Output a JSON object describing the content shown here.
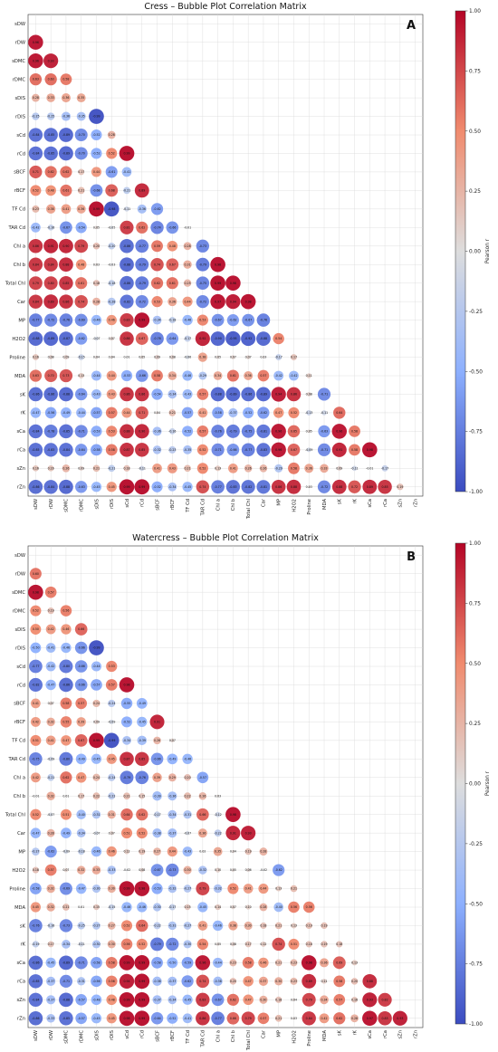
{
  "colorbar": {
    "label": "Pearson r",
    "ticks": [
      "1.00",
      "0.75",
      "0.50",
      "0.25",
      "0.00",
      "-0.25",
      "-0.50",
      "-0.75",
      "-1.00"
    ],
    "colors": {
      "low": "#3b4cc0",
      "mid": "#dddddd",
      "high": "#b40426"
    }
  },
  "chart_data": [
    {
      "type": "heatmap",
      "title": "Cress – Bubble Plot Correlation Matrix",
      "panel": "A",
      "variables": [
        "sDW",
        "rDW",
        "sDMC",
        "rDMC",
        "sDIS",
        "rDIS",
        "sCd",
        "rCd",
        "sBCF",
        "rBCF",
        "TF Cd",
        "TAR Cd",
        "Chl a",
        "Chl b",
        "Total Chl",
        "Car",
        "MP",
        "H2O2",
        "Proline",
        "MDA",
        "sK",
        "rK",
        "sCa",
        "rCa",
        "sZn",
        "rZn"
      ],
      "rows": [
        [
          0.96
        ],
        [
          0.96,
          0.93
        ],
        [
          0.63,
          0.63,
          0.58
        ],
        [
          0.28,
          0.33,
          0.36,
          0.35
        ],
        [
          -0.25,
          -0.25,
          -0.36,
          -0.35,
          -0.99
        ],
        [
          -0.84,
          -0.85,
          -0.89,
          -0.7,
          -0.52,
          0.28
        ],
        [
          -0.84,
          -0.85,
          -0.89,
          -0.7,
          -0.52,
          0.52,
          0.99
        ],
        [
          0.71,
          0.62,
          0.62,
          0.17,
          0.44,
          -0.61,
          -0.41
        ],
        [
          0.52,
          0.48,
          0.61,
          0.21,
          -0.68,
          0.68,
          -0.21,
          0.89
        ],
        [
          0.23,
          0.38,
          0.41,
          0.36,
          0.99,
          -0.98,
          -0.11,
          -0.36,
          -0.62
        ],
        [
          -0.42,
          -0.16,
          -0.67,
          -0.54,
          0.05,
          -0.05,
          0.81,
          0.62,
          -0.74,
          -0.66,
          -0.01
        ],
        [
          0.86,
          0.91,
          0.9,
          0.79,
          0.2,
          -0.2,
          -0.86,
          -0.77,
          0.59,
          0.48,
          0.28,
          -0.73
        ],
        [
          0.84,
          0.84,
          0.88,
          0.48,
          0.03,
          -0.03,
          -0.88,
          -0.79,
          0.74,
          0.67,
          0.31,
          -0.79,
          0.98
        ],
        [
          0.79,
          0.8,
          0.85,
          0.61,
          0.18,
          -0.18,
          -0.86,
          -0.79,
          0.62,
          0.61,
          0.25,
          -0.75,
          0.99,
          0.98
        ],
        [
          0.84,
          0.89,
          0.86,
          0.74,
          0.28,
          -0.28,
          -0.82,
          -0.72,
          0.53,
          0.36,
          0.44,
          -0.72,
          0.97,
          0.94,
          0.98
        ],
        [
          -0.77,
          -0.72,
          -0.76,
          -0.69,
          -0.46,
          0.46,
          0.83,
          0.99,
          -0.34,
          -0.18,
          -0.46,
          0.53,
          -0.67,
          -0.62,
          -0.67,
          -0.76
        ],
        [
          -0.88,
          -0.89,
          -0.87,
          -0.62,
          -0.07,
          0.07,
          0.86,
          0.67,
          -0.76,
          -0.64,
          -0.17,
          0.92,
          -0.9,
          -0.95,
          -0.92,
          -0.88,
          0.54
        ],
        [
          0.16,
          0.08,
          0.09,
          -0.15,
          0.04,
          0.04,
          0.01,
          0.05,
          0.09,
          0.08,
          -0.06,
          0.38,
          0.05,
          0.07,
          0.07,
          0.03,
          -0.17,
          0.17
        ],
        [
          0.63,
          0.7,
          0.73,
          0.13,
          -0.44,
          0.44,
          -0.53,
          -0.66,
          0.58,
          0.34,
          -0.46,
          -0.29,
          0.34,
          0.61,
          0.36,
          0.57,
          -0.42,
          -0.42,
          0.11
        ],
        [
          -0.86,
          -0.86,
          -0.88,
          -0.64,
          -0.43,
          0.43,
          0.86,
          0.86,
          -0.54,
          -0.34,
          -0.43,
          0.57,
          -0.88,
          -0.89,
          -0.86,
          -0.89,
          0.94,
          0.86,
          0.08,
          -0.71
        ],
        [
          -0.47,
          -0.56,
          -0.49,
          -0.44,
          -0.57,
          0.57,
          0.44,
          0.71,
          0.04,
          0.21,
          -0.57,
          0.41,
          -0.58,
          -0.37,
          -0.52,
          -0.62,
          0.47,
          0.52,
          -0.13,
          -0.11,
          0.64
        ],
        [
          -0.84,
          -0.78,
          -0.85,
          -0.71,
          -0.53,
          0.53,
          0.88,
          0.9,
          -0.36,
          -0.16,
          -0.52,
          0.57,
          -0.76,
          -0.79,
          -0.75,
          -0.81,
          0.96,
          0.65,
          0.05,
          -0.63,
          0.96,
          0.58
        ],
        [
          -0.85,
          -0.83,
          -0.84,
          -0.64,
          -0.58,
          0.58,
          0.87,
          0.85,
          -0.32,
          -0.23,
          -0.35,
          0.52,
          -0.71,
          -0.66,
          -0.77,
          -0.83,
          0.96,
          0.67,
          -0.09,
          -0.71,
          0.91,
          0.58,
          0.98
        ],
        [
          0.16,
          0.16,
          0.26,
          0.09,
          0.21,
          -0.21,
          0.18,
          -0.11,
          0.41,
          0.43,
          0.21,
          0.52,
          0.13,
          0.41,
          0.26,
          0.26,
          -0.29,
          0.58,
          0.36,
          0.33,
          0.09,
          -0.11,
          -0.01,
          -0.17
        ],
        [
          -0.86,
          -0.84,
          -0.88,
          -0.63,
          -0.45,
          0.45,
          0.99,
          0.99,
          -0.52,
          -0.34,
          -0.45,
          0.74,
          -0.77,
          -0.83,
          -0.82,
          -0.81,
          0.86,
          0.88,
          0.03,
          -0.72,
          0.88,
          0.72,
          0.89,
          0.85,
          0.19
        ]
      ],
      "grid": true,
      "legend": "right"
    },
    {
      "type": "heatmap",
      "title": "Watercress – Bubble Plot Correlation Matrix",
      "panel": "B",
      "variables": [
        "sDW",
        "rDW",
        "sDMC",
        "rDMC",
        "sDIS",
        "rDIS",
        "sCd",
        "rCd",
        "sBCF",
        "rBCF",
        "TF Cd",
        "TAR Cd",
        "Chl a",
        "Chl b",
        "Total Chl",
        "Car",
        "MP",
        "H2O2",
        "Proline",
        "MDA",
        "sK",
        "rK",
        "sCa",
        "rCa",
        "sZn",
        "rZn"
      ],
      "rows": [
        [
          0.6
        ],
        [
          0.98,
          0.57
        ],
        [
          0.52,
          0.19,
          0.56
        ],
        [
          0.5,
          0.42,
          0.46,
          0.66
        ],
        [
          -0.5,
          -0.41,
          -0.46,
          -0.66,
          -0.99
        ],
        [
          -0.77,
          -0.42,
          -0.8,
          -0.66,
          -0.44,
          0.53
        ],
        [
          -0.82,
          -0.47,
          -0.86,
          -0.66,
          -0.57,
          0.57,
          0.98
        ],
        [
          0.41,
          0.07,
          0.58,
          0.57,
          0.24,
          -0.24,
          -0.55,
          -0.49
        ],
        [
          0.42,
          0.32,
          0.55,
          0.39,
          0.09,
          -0.09,
          -0.52,
          -0.45,
          0.91
        ],
        [
          0.51,
          0.41,
          0.47,
          0.67,
          0.99,
          -0.99,
          -0.34,
          -0.39,
          0.26,
          0.07
        ],
        [
          -0.75,
          -0.09,
          -0.8,
          -0.49,
          -0.45,
          0.45,
          0.87,
          0.85,
          -0.66,
          -0.49,
          -0.46
        ],
        [
          0.42,
          -0.21,
          0.62,
          0.47,
          0.24,
          -0.24,
          -0.79,
          -0.76,
          0.39,
          0.29,
          0.2,
          -0.57
        ],
        [
          -0.01,
          0.32,
          0.01,
          0.17,
          0.22,
          -0.22,
          0.21,
          0.15,
          -0.39,
          -0.36,
          0.22,
          0.26,
          0.03
        ],
        [
          0.52,
          -0.07,
          0.51,
          -0.4,
          -0.31,
          0.31,
          0.64,
          0.62,
          -0.17,
          -0.34,
          -0.31,
          0.66,
          -0.12,
          0.98
        ],
        [
          -0.47,
          0.28,
          -0.49,
          -0.34,
          -0.07,
          0.07,
          0.51,
          0.52,
          -0.38,
          -0.37,
          -0.07,
          0.36,
          -0.22,
          0.91,
          0.93
        ],
        [
          -0.27,
          -0.62,
          -0.09,
          -0.18,
          -0.46,
          0.46,
          0.12,
          0.19,
          0.27,
          0.44,
          -0.43,
          0.02,
          0.35,
          0.04,
          0.19,
          0.28
        ],
        [
          0.18,
          0.57,
          0.07,
          0.32,
          0.33,
          -0.33,
          -0.02,
          0.08,
          -0.67,
          -0.73,
          0.3,
          -0.32,
          0.1,
          0.05,
          0.06,
          -0.02,
          -0.62
        ],
        [
          -0.58,
          0.32,
          -0.69,
          -0.47,
          -0.3,
          0.3,
          0.99,
          0.98,
          -0.53,
          -0.32,
          -0.27,
          0.79,
          -0.32,
          0.52,
          0.41,
          0.44,
          0.13,
          0.21
        ],
        [
          0.45,
          0.32,
          0.21,
          0.01,
          0.15,
          -0.15,
          -0.46,
          -0.46,
          -0.3,
          -0.17,
          0.15,
          -0.45,
          0.14,
          0.07,
          0.1,
          0.28,
          -0.4,
          0.56,
          0.56
        ],
        [
          -0.76,
          -0.16,
          -0.73,
          -0.25,
          -0.27,
          0.27,
          0.52,
          0.64,
          -0.22,
          -0.31,
          -0.27,
          0.41,
          -0.46,
          0.38,
          0.3,
          0.18,
          0.21,
          0.13,
          0.19,
          0.19
        ],
        [
          -0.19,
          0.17,
          -0.34,
          -0.11,
          -0.3,
          0.3,
          0.56,
          0.52,
          -0.79,
          -0.72,
          -0.3,
          0.54,
          0.05,
          0.08,
          0.17,
          0.12,
          0.74,
          0.51,
          0.18,
          0.19,
          0.18
        ],
        [
          -0.86,
          -0.45,
          -0.89,
          -0.71,
          -0.58,
          0.58,
          0.99,
          0.99,
          -0.58,
          -0.5,
          -0.59,
          0.96,
          -0.44,
          0.23,
          0.58,
          0.46,
          0.21,
          0.23,
          0.98,
          0.36,
          0.69,
          0.13
        ],
        [
          -0.85,
          -0.37,
          -0.71,
          -0.31,
          -0.56,
          0.56,
          0.94,
          0.99,
          -0.38,
          -0.37,
          -0.62,
          0.74,
          -0.38,
          0.2,
          0.47,
          0.37,
          0.3,
          0.23,
          0.89,
          0.11,
          0.58,
          0.2,
          0.88
        ],
        [
          -0.84,
          -0.37,
          -0.88,
          -0.57,
          -0.48,
          0.48,
          0.99,
          0.99,
          -0.37,
          -0.34,
          -0.45,
          0.83,
          -0.67,
          0.62,
          0.47,
          0.3,
          0.18,
          0.04,
          0.79,
          0.34,
          0.57,
          0.16,
          0.93,
          0.82
        ],
        [
          -0.86,
          -0.33,
          -0.85,
          -0.57,
          -0.45,
          0.45,
          0.98,
          0.99,
          -0.64,
          -0.52,
          -0.41,
          0.86,
          -0.77,
          0.66,
          0.79,
          0.57,
          0.21,
          0.03,
          0.84,
          0.42,
          0.62,
          0.28,
          0.97,
          0.85,
          0.93
        ]
      ],
      "grid": true,
      "legend": "right"
    }
  ]
}
